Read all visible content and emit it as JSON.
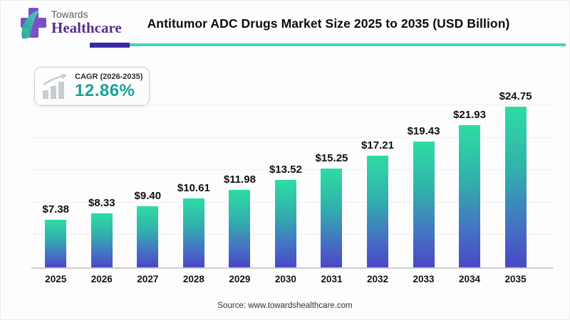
{
  "brand": {
    "name_top": "Towards",
    "name_bottom": "Healthcare"
  },
  "header": {
    "title": "Antitumor ADC Drugs Market Size 2025 to 2035 (USD Billion)"
  },
  "cagr": {
    "label": "CAGR (2026-2035)",
    "value": "12.86%"
  },
  "footer": {
    "source": "Source: www.towardshealthcare.com"
  },
  "colors": {
    "bar_gradient_top": "#2EDCA5",
    "bar_gradient_bottom": "#4B47C5",
    "underline_purple": "#3B28A8",
    "underline_teal": "#3FD6B3",
    "cagr_value_teal": "#17A398",
    "brand_purple": "#5B2D90"
  },
  "chart_data": {
    "type": "bar",
    "title": "Antitumor ADC Drugs Market Size 2025 to 2035 (USD Billion)",
    "unit": "USD Billion",
    "categories": [
      "2025",
      "2026",
      "2027",
      "2028",
      "2029",
      "2030",
      "2031",
      "2032",
      "2033",
      "2034",
      "2035"
    ],
    "values": [
      7.38,
      8.33,
      9.4,
      10.61,
      11.98,
      13.52,
      15.25,
      17.21,
      19.43,
      21.93,
      24.75
    ],
    "labels": [
      "$7.38",
      "$8.33",
      "$9.40",
      "$10.61",
      "$11.98",
      "$13.52",
      "$15.25",
      "$17.21",
      "$19.43",
      "$21.93",
      "$24.75"
    ],
    "ylim": [
      0,
      25
    ],
    "grid": true,
    "gridline_step": 5,
    "legend": false,
    "source": "Source: www.towardshealthcare.com"
  }
}
